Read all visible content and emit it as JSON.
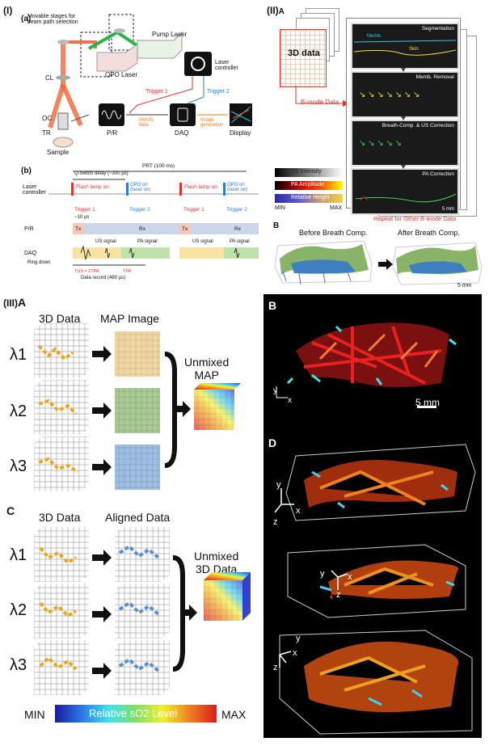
{
  "colors": {
    "accent_red": "#e8312f",
    "accent_blue": "#2a7bd6",
    "accent_green": "#2fb34a",
    "accent_orange": "#f07a22"
  },
  "sec1": {
    "label": "(I)",
    "a": {
      "label": "(a)",
      "movable": "Movable stages for\nbeam path selection",
      "pump": "Pump Laser",
      "opo": "OPO Laser",
      "laser_controller": "Laser\ncontroller",
      "cl": "CL",
      "oc": "OC",
      "tr": "TR",
      "sample": "Sample",
      "pr": "P/R",
      "daq": "DAQ",
      "display": "Display",
      "trigger1": "Trigger 1",
      "trigger2": "Trigger 2",
      "pa_us": "PA/US\ndata",
      "image_gen": "Image\ngeneration"
    },
    "b": {
      "label": "(b)",
      "prt": "PRT (100 ms)",
      "qswitch": "Q-switch delay (~300 µs)",
      "rows": [
        "Laser\ncontroller",
        "P/R",
        "DAQ"
      ],
      "flash": "Flash lamp on",
      "opo_on": "OPO on\n(laser on)",
      "trig1": "Trigger 1",
      "trig2": "Trigger 2",
      "ten_us": "~10 µs",
      "tx": "Tx",
      "rx": "Rx",
      "us_signal": "US signal",
      "pa_signal": "PA signal",
      "ring_down": "Ring down",
      "tus": "TUS = 2TPA",
      "tpa": "TPA",
      "data_record": "Data record (480 µs)"
    }
  },
  "sec2": {
    "label": "(II)",
    "sub_a": "A",
    "data3d": "3D data",
    "bmode_data": "B-mode Data",
    "steps": [
      "Segmentation",
      "Memb. Removal",
      "Breath-Comp. & US Correction",
      "PA Correction"
    ],
    "memb": "Memb.",
    "skin": "Skin",
    "legend": [
      "US Intensity",
      "PA Amplitude",
      "Relative Height"
    ],
    "min": "MIN",
    "max": "MAX",
    "scale": "5 mm",
    "repeat": "Repeat for Other B-mode Data",
    "sub_b": "B",
    "before": "Before Breath Comp.",
    "after": "After Breath Comp.",
    "scale_b": "5 mm",
    "side_labels": [
      "on",
      "on",
      "val",
      "on",
      "ion"
    ]
  },
  "sec3": {
    "label": "(III)",
    "sub_a": "A",
    "data3d": "3D Data",
    "map_image": "MAP Image",
    "unmixed_map": "Unmixed\nMAP",
    "lambdas": [
      "λ1",
      "λ2",
      "λ3"
    ],
    "sub_c": "C",
    "data3d_c": "3D Data",
    "aligned": "Aligned Data",
    "unmixed_3d": "Unmixed\n3D Data",
    "colorbar_min": "MIN",
    "colorbar_label": "Relative sO2 Level",
    "colorbar_max": "MAX",
    "sub_b": "B",
    "scale_b": "5 mm",
    "sub_d": "D",
    "axes": {
      "x": "x",
      "y": "y",
      "z": "z"
    }
  }
}
